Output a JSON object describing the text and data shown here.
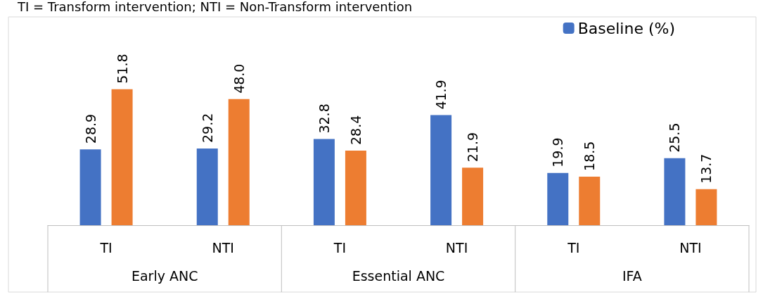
{
  "chart_data": {
    "type": "bar",
    "categories": [
      "TI",
      "NTI",
      "TI",
      "NTI",
      "TI",
      "NTI"
    ],
    "series": [
      {
        "name": "Baseline (%)",
        "color": "#4472c4",
        "values": [
          28.9,
          29.2,
          32.8,
          41.9,
          19.9,
          25.5
        ],
        "value_labels": [
          "28.9",
          "29.2",
          "32.8",
          "41.9",
          "19.9",
          "25.5"
        ]
      },
      {
        "color": "#ed7d31",
        "values": [
          51.8,
          48.0,
          28.4,
          21.9,
          18.5,
          13.7
        ],
        "value_labels": [
          "51.8",
          "48.0",
          "28.4",
          "21.9",
          "18.5",
          "13.7"
        ]
      }
    ],
    "legend": "top right",
    "annotations": [
      "TI = Transform intervention; NTI = Non-Transform intervention",
      "Early ANC",
      "Essential ANC",
      "IFA"
    ]
  }
}
